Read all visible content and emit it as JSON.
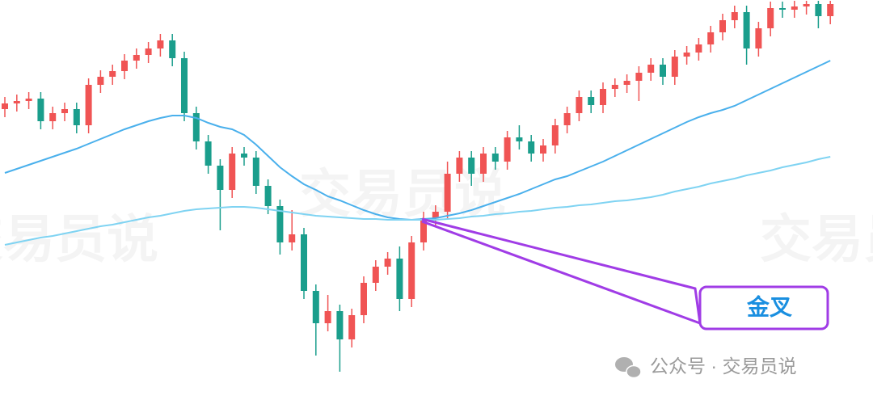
{
  "chart_data": {
    "type": "candlestick",
    "ylim": [
      5,
      500
    ],
    "up_color": "#f05454",
    "down_color": "#1a9e8c",
    "open": [
      365,
      372,
      375,
      378,
      350,
      360,
      365,
      345,
      395,
      405,
      412,
      425,
      432,
      440,
      450,
      428,
      360,
      325,
      295,
      265,
      310,
      305,
      270,
      245,
      200,
      210,
      140,
      100,
      115,
      80,
      110,
      150,
      170,
      180,
      130,
      200,
      230,
      238,
      285,
      305,
      285,
      310,
      300,
      330,
      325,
      310,
      320,
      345,
      360,
      380,
      370,
      390,
      395,
      400,
      410,
      420,
      405,
      430,
      435,
      445,
      460,
      475,
      485,
      440,
      465,
      490,
      488,
      492,
      495,
      480
    ],
    "high": [
      380,
      383,
      386,
      386,
      368,
      373,
      373,
      403,
      413,
      420,
      433,
      440,
      448,
      458,
      458,
      436,
      368,
      333,
      303,
      318,
      318,
      313,
      278,
      253,
      240,
      218,
      148,
      135,
      123,
      118,
      158,
      178,
      188,
      195,
      208,
      238,
      246,
      300,
      313,
      313,
      318,
      318,
      338,
      345,
      333,
      328,
      353,
      368,
      388,
      388,
      398,
      403,
      408,
      418,
      428,
      428,
      438,
      443,
      453,
      468,
      483,
      493,
      493,
      473,
      498,
      498,
      499,
      499,
      499,
      499
    ],
    "low": [
      355,
      362,
      365,
      340,
      340,
      350,
      335,
      335,
      385,
      395,
      402,
      415,
      422,
      430,
      418,
      350,
      315,
      285,
      215,
      255,
      295,
      260,
      235,
      185,
      190,
      130,
      60,
      90,
      40,
      70,
      100,
      140,
      160,
      115,
      120,
      190,
      220,
      228,
      275,
      270,
      275,
      290,
      290,
      315,
      300,
      300,
      310,
      335,
      350,
      360,
      360,
      380,
      385,
      375,
      400,
      395,
      395,
      420,
      425,
      435,
      450,
      465,
      420,
      430,
      455,
      478,
      478,
      482,
      465,
      470
    ],
    "close": [
      372,
      375,
      378,
      350,
      360,
      365,
      345,
      395,
      405,
      412,
      425,
      432,
      440,
      450,
      428,
      360,
      325,
      295,
      265,
      310,
      305,
      270,
      245,
      200,
      210,
      140,
      100,
      115,
      80,
      110,
      150,
      170,
      180,
      130,
      200,
      230,
      238,
      285,
      305,
      285,
      310,
      300,
      330,
      325,
      310,
      320,
      345,
      360,
      380,
      370,
      390,
      395,
      400,
      410,
      420,
      405,
      430,
      435,
      445,
      460,
      475,
      485,
      440,
      465,
      490,
      488,
      492,
      495,
      480,
      495
    ],
    "lines": [
      {
        "color": "#4ab0ec",
        "values": [
          286,
          291,
          296,
          301,
          306,
          311,
          316,
          322,
          328,
          334,
          340,
          345,
          350,
          354,
          357,
          357,
          354,
          348,
          343,
          340,
          333,
          321,
          307,
          293,
          282,
          272,
          265,
          257,
          252,
          246,
          240,
          235,
          231,
          229,
          228,
          229,
          230,
          233,
          236,
          240,
          245,
          250,
          255,
          260,
          266,
          272,
          278,
          282,
          288,
          294,
          300,
          307,
          314,
          321,
          328,
          335,
          342,
          349,
          355,
          360,
          364,
          369,
          376,
          383,
          390,
          397,
          404,
          411,
          418,
          425
        ]
      },
      {
        "color": "#7fd3f2",
        "values": [
          197,
          200,
          203,
          206,
          208,
          211,
          214,
          217,
          220,
          222,
          225,
          228,
          231,
          233,
          236,
          239,
          241,
          242,
          243,
          244,
          244,
          243,
          241,
          239,
          237,
          235,
          233,
          232,
          231,
          230,
          229,
          229,
          228,
          228,
          228,
          228,
          228,
          229,
          230,
          232,
          233,
          235,
          236,
          238,
          239,
          241,
          243,
          244,
          246,
          247,
          249,
          251,
          252,
          254,
          256,
          259,
          263,
          266,
          269,
          273,
          276,
          279,
          283,
          286,
          289,
          293,
          296,
          299,
          303,
          306
        ]
      }
    ],
    "annotation": "金叉",
    "watermark": "交易员说",
    "source": "公众号 · 交易员说"
  }
}
